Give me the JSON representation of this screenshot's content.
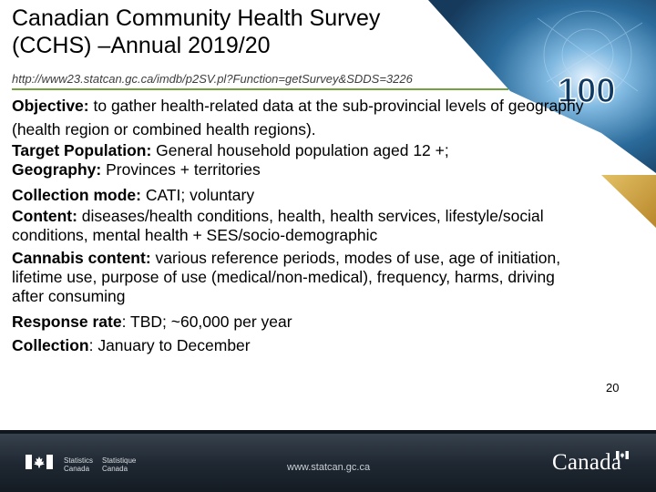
{
  "slide": {
    "title_lines": [
      "Canadian Community Health Survey",
      "(CCHS) –Annual 2019/20"
    ],
    "url": "http://www23.statcan.gc.ca/imdb/p2SV.pl?Function=getSurvey&SDDS=3226",
    "page_number": "20"
  },
  "content": {
    "objective": {
      "label": "Objective:",
      "text": " to gather health-related data at the sub-provincial levels of geography (health region or combined health regions)."
    },
    "target_population": {
      "label": "Target Population:",
      "text": "  General household population aged 12 +;"
    },
    "geography": {
      "label": "Geography:",
      "text": " Provinces + territories"
    },
    "collection_mode": {
      "label": "Collection mode:",
      "text": "  CATI; voluntary"
    },
    "content_line": {
      "label": "Content:",
      "text": "  diseases/health conditions, health, health services, lifestyle/social conditions, mental health +  SES/socio-demographic"
    },
    "cannabis": {
      "label": "Cannabis content:",
      "text": " various reference periods, modes of use, age of initiation, lifetime use, purpose of use (medical/non-medical), frequency, harms, driving after consuming"
    },
    "response_rate": {
      "label": "Response rate",
      "text": ": TBD; ~60,000 per year"
    },
    "collection": {
      "label": "Collection",
      "text": ": January to December"
    }
  },
  "decoration": {
    "badge_text": "100",
    "accent_color": "#c9a23a",
    "badge_color": "#1a4f7a"
  },
  "footer": {
    "statistics": [
      "Statistics",
      "Canada"
    ],
    "statistique": [
      "Statistique",
      "Canada"
    ],
    "website": "www.statcan.gc.ca",
    "wordmark": "Canadă"
  }
}
